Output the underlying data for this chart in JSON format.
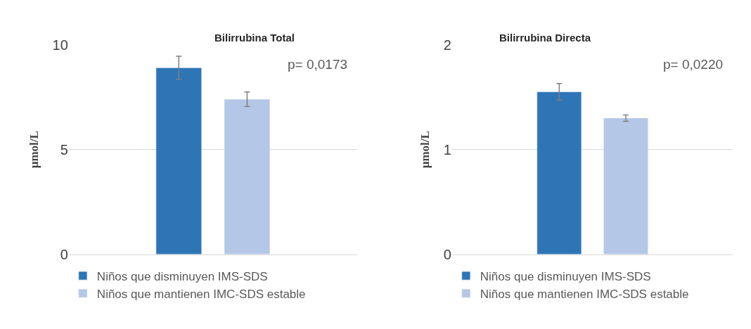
{
  "chart_data": [
    {
      "type": "bar",
      "title": "Bilirrubina Total",
      "ylabel": "µmol/L",
      "categories": [
        null
      ],
      "series": [
        {
          "name": "Niños que disminuyen IMS-SDS",
          "color": "#2e75b6",
          "values": [
            8.9
          ],
          "errors": [
            0.55
          ]
        },
        {
          "name": "Niños que mantienen IMC-SDS estable",
          "color": "#b4c7e7",
          "values": [
            7.4
          ],
          "errors": [
            0.35
          ]
        }
      ],
      "ylim": [
        0,
        10
      ],
      "yticks": [
        0,
        5,
        10
      ],
      "grid": "y",
      "legend": "bottom",
      "annotations": [
        "p= 0,0173"
      ]
    },
    {
      "type": "bar",
      "title": "Bilirrubina Directa",
      "ylabel": "µmol/L",
      "categories": [
        null
      ],
      "series": [
        {
          "name": "Niños que disminuyen IMS-SDS",
          "color": "#2e75b6",
          "values": [
            1.55
          ],
          "errors": [
            0.08
          ]
        },
        {
          "name": "Niños que mantienen IMC-SDS estable",
          "color": "#b4c7e7",
          "values": [
            1.3
          ],
          "errors": [
            0.03
          ]
        }
      ],
      "ylim": [
        0,
        2
      ],
      "yticks": [
        0,
        1,
        2
      ],
      "grid": "y",
      "legend": "bottom",
      "annotations": [
        "p= 0,0220"
      ]
    }
  ]
}
